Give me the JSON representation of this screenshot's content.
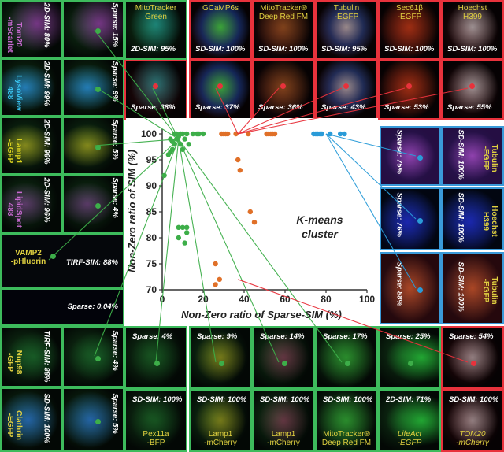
{
  "chart_data": {
    "type": "scatter",
    "xlabel": "Non-Zero ratio of Sparse-SIM (%)",
    "ylabel": "Non-Zero ratio of SIM (%)",
    "xlim": [
      0,
      100
    ],
    "ylim": [
      70,
      100
    ],
    "xticks": [
      "0",
      "20",
      "40",
      "60",
      "80",
      "100"
    ],
    "yticks": [
      "70",
      "75",
      "80",
      "85",
      "90",
      "95",
      "100"
    ],
    "annotation": "K-means\ncluster",
    "grid": false,
    "series": [
      {
        "color": "#3dae49",
        "points": [
          [
            1,
            92
          ],
          [
            3,
            96
          ],
          [
            4,
            96.5
          ],
          [
            5,
            97
          ],
          [
            6,
            100
          ],
          [
            4,
            99
          ],
          [
            5,
            98.5
          ],
          [
            6,
            98
          ],
          [
            7,
            100
          ],
          [
            7,
            99
          ],
          [
            8,
            99.5
          ],
          [
            9,
            100
          ],
          [
            9,
            98
          ],
          [
            10,
            100
          ],
          [
            10,
            97
          ],
          [
            11,
            99
          ],
          [
            12,
            100
          ],
          [
            13,
            98
          ],
          [
            15,
            100
          ],
          [
            17,
            100
          ],
          [
            18,
            100
          ],
          [
            20,
            100
          ],
          [
            8,
            82
          ],
          [
            10,
            82
          ],
          [
            12,
            81
          ],
          [
            8,
            80
          ],
          [
            11,
            79
          ],
          [
            12,
            82
          ]
        ]
      },
      {
        "color": "#e07028",
        "points": [
          [
            29,
            100
          ],
          [
            30,
            100
          ],
          [
            31,
            100
          ],
          [
            32,
            100
          ],
          [
            36,
            100
          ],
          [
            37,
            95
          ],
          [
            38,
            93
          ],
          [
            42,
            100
          ],
          [
            43,
            85
          ],
          [
            45,
            83
          ],
          [
            51,
            100
          ],
          [
            52,
            100
          ],
          [
            53,
            100
          ],
          [
            54,
            100
          ],
          [
            55,
            100
          ],
          [
            26,
            75
          ],
          [
            26,
            71
          ],
          [
            28,
            72
          ]
        ]
      },
      {
        "color": "#2a9bd8",
        "points": [
          [
            74,
            100
          ],
          [
            75,
            100
          ],
          [
            76,
            100
          ],
          [
            77,
            100
          ],
          [
            78,
            100
          ],
          [
            82,
            100
          ],
          [
            87,
            100
          ],
          [
            89,
            100
          ]
        ]
      }
    ]
  },
  "left_tiles": [
    {
      "name": "Tom20\n-mScarlet",
      "sim": "2D-SIM: 80%",
      "sparse": "Sparse: 15%",
      "label_color": "#c86ad0"
    },
    {
      "name": "LysoView 488",
      "sim": "2D-SIM: 99%",
      "sparse": "Sparse: 9%",
      "label_color": "#3bc4f0"
    },
    {
      "name": "Lamp1\n-EGFP",
      "sim": "2D-SIM: 96%",
      "sparse": "Sparse: 5%",
      "label_color": "#d8d020"
    },
    {
      "name": "LipidSpot 488",
      "sim": "2D-SIM: 96%",
      "sparse": "Sparse: 4%",
      "label_color": "#c86ad0"
    },
    {
      "name": "VAMP2\n-pHluorin",
      "sim": "TIRF-SIM: 88%",
      "sparse": "Sparse: 0.04%",
      "label_color": "#e0d040"
    },
    {
      "name": "Nup98\n-GFP",
      "sim": "TIRF-SIM: 88%",
      "sparse": "Sparse: 4%",
      "label_color": "#e0d040"
    },
    {
      "name": "Clathrin\n-EGFP",
      "sim": "SD-SIM: 100%",
      "sparse": "Sparse: 5%",
      "label_color": "#e0d040"
    }
  ],
  "top_tiles": [
    {
      "name": "MitoTracker\nGreen",
      "sim": "2D-SIM: 95%",
      "sparse": "Sparse: 38%",
      "label_color": "#e0d040"
    },
    {
      "name": "GCaMP6s",
      "sim": "SD-SIM: 100%",
      "sparse": "Sparse: 37%",
      "label_color": "#e0d040"
    },
    {
      "name": "MitoTracker®\nDeep Red FM",
      "sim": "SD-SIM: 100%",
      "sparse": "Sparse: 36%",
      "label_color": "#e0d040"
    },
    {
      "name": "Tubulin\n-EGFP",
      "sim": "SD-SIM: 95%",
      "sparse": "Sparse: 43%",
      "label_color": "#e0d040"
    },
    {
      "name": "Sec61β\n-EGFP",
      "sim": "SD-SIM: 100%",
      "sparse": "Sparse: 53%",
      "label_color": "#e0d040"
    },
    {
      "name": "Hoechst\nH399",
      "sim": "SD-SIM: 100%",
      "sparse": "Sparse: 55%",
      "label_color": "#e0d040"
    }
  ],
  "right_tiles": [
    {
      "name": "Tubulin\n-EGFP",
      "sim": "SD-SIM: 100%",
      "sparse": "Sparse: 75%",
      "label_color": "#e0d040"
    },
    {
      "name": "Hoechst\nH399",
      "sim": "SD-SIM: 100%",
      "sparse": "Sparse: 76%",
      "label_color": "#e0d040"
    },
    {
      "name": "Tubulin\n-EGFP",
      "sim": "SD-SIM: 100%",
      "sparse": "Sparse: 88%",
      "label_color": "#e0d040"
    }
  ],
  "bottom_tiles": [
    {
      "name": "Pex11a\n-BFP",
      "sim": "SD-SIM: 100%",
      "sparse": "Sparse: 4%",
      "label_color": "#e0d040"
    },
    {
      "name": "Lamp1\n-mCherry",
      "sim": "SD-SIM: 100%",
      "sparse": "Sparse: 9%",
      "label_color": "#e0d040"
    },
    {
      "name": "Lamp1\n-mCherry",
      "sim": "SD-SIM: 100%",
      "sparse": "Sparse: 14%",
      "label_color": "#e0d040"
    },
    {
      "name": "MitoTracker®\nDeep Red FM",
      "sim": "SD-SIM: 100%",
      "sparse": "Sparse: 17%",
      "label_color": "#e0d040"
    },
    {
      "name": "LifeAct\n-EGFP",
      "sim": "2D-SIM: 71%",
      "sparse": "Sparse: 25%",
      "label_color": "#e0d040"
    },
    {
      "name": "TOM20\n-mCherry",
      "sim": "SD-SIM: 100%",
      "sparse": "Sparse: 54%",
      "label_color": "#e0d040"
    }
  ]
}
